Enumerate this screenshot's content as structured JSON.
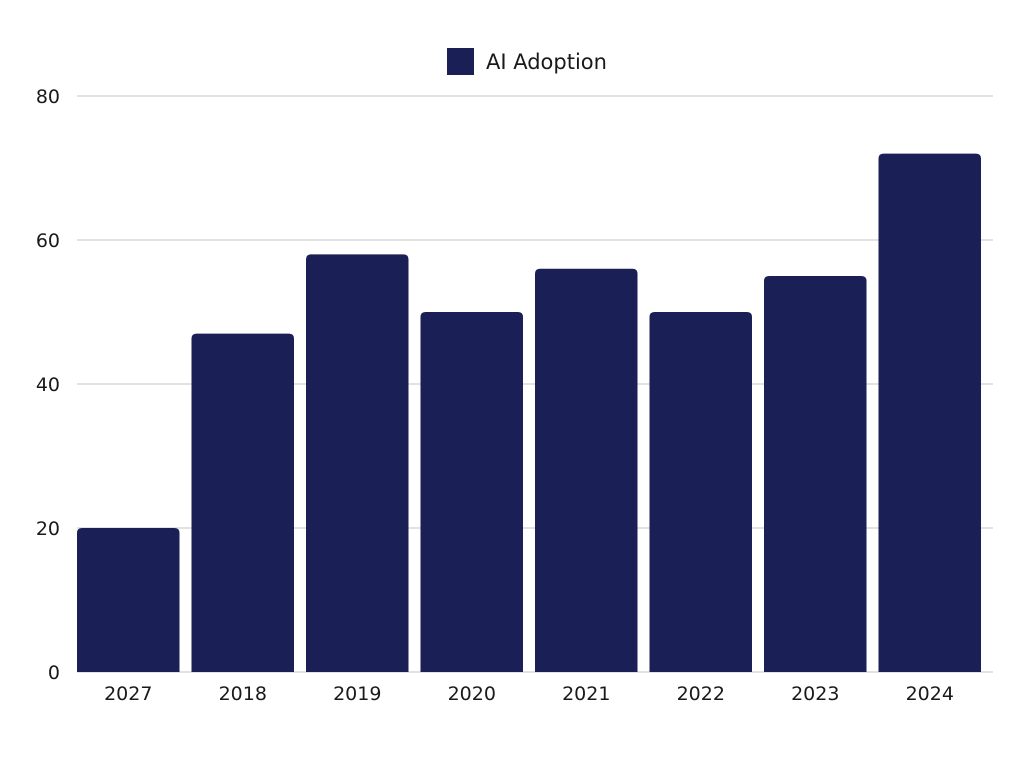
{
  "chart_data": {
    "type": "bar",
    "categories": [
      "2027",
      "2018",
      "2019",
      "2020",
      "2021",
      "2022",
      "2023",
      "2024"
    ],
    "series": [
      {
        "name": "AI Adoption",
        "values": [
          20,
          47,
          58,
          50,
          56,
          50,
          55,
          72
        ],
        "color": "#1a1f55"
      }
    ],
    "title": "",
    "xlabel": "",
    "ylabel": "",
    "ylim": [
      0,
      80
    ],
    "yticks": [
      0,
      20,
      40,
      60,
      80
    ],
    "grid": true,
    "legend_position": "top-center"
  }
}
